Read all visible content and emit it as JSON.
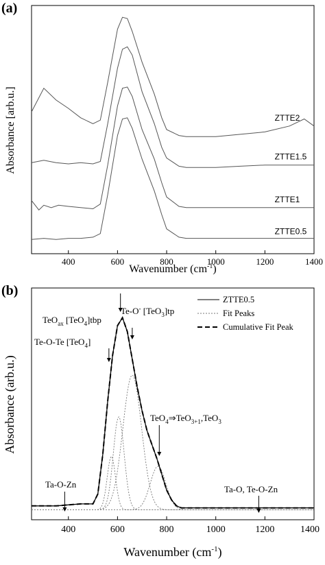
{
  "chart_data": [
    {
      "type": "line",
      "panel_label": "(a)",
      "xlabel": "Wavenumber (cm",
      "xlabel_sup": "-1",
      "xlabel_close": ")",
      "ylabel": "Absorbance [arb.u.]",
      "xlim": [
        250,
        1400
      ],
      "xticks": [
        400,
        600,
        800,
        1000,
        1200,
        1400
      ],
      "grid": false,
      "series": [
        {
          "name": "ZTTE2",
          "x": [
            250,
            300,
            350,
            400,
            450,
            500,
            530,
            560,
            600,
            620,
            640,
            660,
            700,
            750,
            780,
            800,
            850,
            880,
            900,
            1000,
            1100,
            1200,
            1300,
            1360,
            1400
          ],
          "y": [
            3.05,
            3.25,
            3.15,
            3.08,
            3.0,
            2.95,
            2.98,
            3.3,
            3.75,
            3.85,
            3.84,
            3.73,
            3.47,
            3.2,
            3.0,
            2.9,
            2.85,
            2.84,
            2.84,
            2.84,
            2.86,
            2.88,
            2.93,
            2.99,
            2.93
          ]
        },
        {
          "name": "ZTTE1.5",
          "x": [
            250,
            300,
            350,
            400,
            450,
            500,
            530,
            560,
            600,
            620,
            640,
            660,
            700,
            750,
            780,
            800,
            850,
            880,
            900,
            1000,
            1100,
            1200,
            1300,
            1400
          ],
          "y": [
            2.62,
            2.64,
            2.62,
            2.61,
            2.62,
            2.61,
            2.63,
            2.95,
            3.42,
            3.58,
            3.6,
            3.53,
            3.22,
            2.95,
            2.75,
            2.66,
            2.59,
            2.58,
            2.58,
            2.58,
            2.59,
            2.6,
            2.6,
            2.6
          ]
        },
        {
          "name": "ZTTE1",
          "x": [
            250,
            280,
            300,
            330,
            360,
            400,
            450,
            500,
            530,
            560,
            600,
            620,
            640,
            660,
            700,
            750,
            780,
            800,
            850,
            880,
            900,
            1000,
            1100,
            1200,
            1300,
            1400
          ],
          "y": [
            2.3,
            2.22,
            2.26,
            2.24,
            2.26,
            2.25,
            2.24,
            2.23,
            2.27,
            2.6,
            3.1,
            3.25,
            3.26,
            3.18,
            2.9,
            2.65,
            2.45,
            2.33,
            2.25,
            2.24,
            2.24,
            2.24,
            2.24,
            2.24,
            2.24,
            2.24
          ]
        },
        {
          "name": "ZTTE0.5",
          "x": [
            250,
            300,
            350,
            400,
            450,
            500,
            530,
            560,
            600,
            620,
            640,
            660,
            700,
            750,
            780,
            800,
            850,
            880,
            900,
            1000,
            1100,
            1200,
            1300,
            1400
          ],
          "y": [
            1.97,
            1.98,
            1.97,
            1.98,
            1.98,
            1.99,
            2.02,
            2.35,
            2.85,
            2.99,
            3.0,
            2.91,
            2.65,
            2.38,
            2.18,
            2.06,
            1.99,
            1.98,
            1.98,
            1.98,
            1.98,
            1.98,
            1.98,
            1.98
          ]
        }
      ]
    },
    {
      "type": "line",
      "panel_label": "(b)",
      "xlabel": "Wavenumber (cm",
      "xlabel_sup": "-1",
      "xlabel_close": ")",
      "ylabel": "Absorbance (arb.u.)",
      "xlim": [
        250,
        1400
      ],
      "xticks": [
        400,
        600,
        800,
        1000,
        1200,
        1400
      ],
      "xtick_labels": [
        "400",
        "600",
        "800",
        "1000",
        "1200",
        "1400"
      ],
      "grid": false,
      "legend": {
        "position": "top-right",
        "entries": [
          "ZTTE0.5",
          "Fit Peaks",
          "Cumulative Fit Peak"
        ]
      },
      "series": [
        {
          "name": "ZTTE0.5",
          "style": "solid",
          "x": [
            250,
            300,
            350,
            400,
            450,
            500,
            520,
            540,
            560,
            580,
            600,
            620,
            640,
            660,
            680,
            700,
            720,
            740,
            760,
            780,
            800,
            820,
            840,
            860,
            900,
            1000,
            1100,
            1200,
            1300,
            1400
          ],
          "y": [
            0.02,
            0.02,
            0.02,
            0.025,
            0.03,
            0.03,
            0.08,
            0.28,
            0.55,
            0.78,
            0.93,
            0.97,
            0.9,
            0.76,
            0.62,
            0.5,
            0.4,
            0.33,
            0.26,
            0.18,
            0.1,
            0.05,
            0.02,
            0.01,
            0.01,
            0.01,
            0.01,
            0.01,
            0.01,
            0.01
          ]
        },
        {
          "name": "Fit Peaks",
          "style": "dotted",
          "centers": [
            575,
            605,
            660,
            765
          ],
          "heights": [
            0.27,
            0.47,
            0.68,
            0.22
          ],
          "fwhm": [
            40,
            52,
            90,
            75
          ]
        },
        {
          "name": "Cumulative Fit Peak",
          "style": "dashed",
          "x": [
            250,
            300,
            350,
            400,
            450,
            500,
            520,
            540,
            560,
            580,
            600,
            620,
            640,
            660,
            680,
            700,
            720,
            740,
            760,
            780,
            800,
            820,
            840,
            860,
            900,
            1000,
            1100,
            1200,
            1300,
            1400
          ],
          "y": [
            0.02,
            0.02,
            0.02,
            0.025,
            0.03,
            0.03,
            0.08,
            0.28,
            0.55,
            0.78,
            0.93,
            0.97,
            0.9,
            0.76,
            0.62,
            0.5,
            0.4,
            0.33,
            0.26,
            0.18,
            0.1,
            0.05,
            0.02,
            0.01,
            0.01,
            0.01,
            0.01,
            0.01,
            0.01,
            0.01
          ]
        }
      ],
      "annotations": [
        {
          "text": "TeO",
          "sub": "ax",
          "rest": " [TeO",
          "sub2": "4",
          "rest2": "]tbp",
          "x": 612
        },
        {
          "text": "Te-O",
          "sup": "-",
          "rest": " [TeO",
          "sub2": "3",
          "rest2": "]tp",
          "x": 660
        },
        {
          "text": "Te-O-Te [TeO",
          "sub": "4",
          "rest": "]",
          "x": 565
        },
        {
          "text": "TeO",
          "sub": "4",
          "rest": "⇒TeO",
          "sub2": "3+1",
          "rest2": ",TeO",
          "sub3": "3",
          "x": 770
        },
        {
          "text": "Ta-O-Zn",
          "x": 385
        },
        {
          "text": "Ta-O, Te-O-Zn",
          "x": 1175
        }
      ]
    }
  ]
}
